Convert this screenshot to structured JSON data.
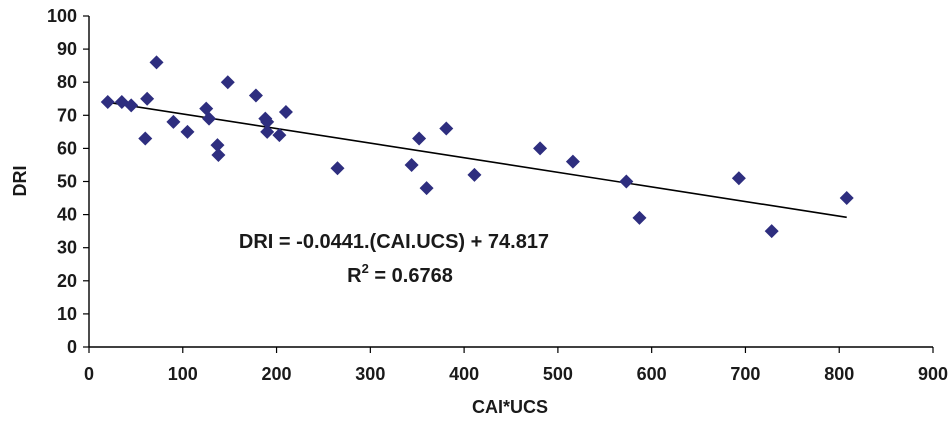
{
  "chart_data": {
    "type": "scatter",
    "title": "",
    "xlabel": "CAI*UCS",
    "ylabel": "DRI",
    "xlim": [
      0,
      900
    ],
    "ylim": [
      0,
      100
    ],
    "xticks": [
      0,
      100,
      200,
      300,
      400,
      500,
      600,
      700,
      800,
      900
    ],
    "yticks": [
      0,
      10,
      20,
      30,
      40,
      50,
      60,
      70,
      80,
      90,
      100
    ],
    "grid": false,
    "legend": "none",
    "marker": "diamond",
    "marker_color": "#2e2e7f",
    "trendline_color": "#000000",
    "series": [
      {
        "points": [
          [
            20,
            74
          ],
          [
            35,
            74
          ],
          [
            45,
            73
          ],
          [
            60,
            63
          ],
          [
            62,
            75
          ],
          [
            72,
            86
          ],
          [
            90,
            68
          ],
          [
            105,
            65
          ],
          [
            125,
            72
          ],
          [
            128,
            69
          ],
          [
            137,
            61
          ],
          [
            138,
            58
          ],
          [
            148,
            80
          ],
          [
            178,
            76
          ],
          [
            188,
            69
          ],
          [
            190,
            68
          ],
          [
            190,
            65
          ],
          [
            203,
            64
          ],
          [
            210,
            71
          ],
          [
            265,
            54
          ],
          [
            344,
            55
          ],
          [
            352,
            63
          ],
          [
            360,
            48
          ],
          [
            381,
            66
          ],
          [
            411,
            52
          ],
          [
            481,
            60
          ],
          [
            516,
            56
          ],
          [
            573,
            50
          ],
          [
            587,
            39
          ],
          [
            693,
            51
          ],
          [
            728,
            35
          ],
          [
            808,
            45
          ]
        ]
      }
    ],
    "trendline": {
      "slope": -0.0441,
      "intercept": 74.817,
      "x_range": [
        20,
        808
      ]
    },
    "annotations": {
      "equation_main": "DRI = -0.0441.(CAI.UCS) + 74.817",
      "r2_prefix": "R",
      "r2_sup": "2",
      "r2_suffix": " = 0.6768"
    }
  }
}
